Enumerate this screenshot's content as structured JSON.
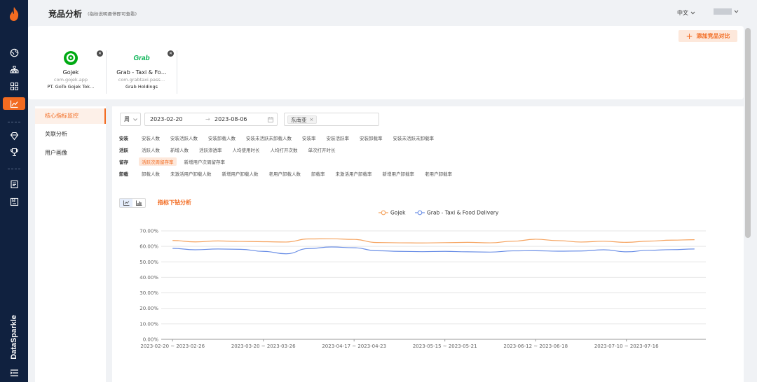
{
  "header": {
    "title": "竞品分析",
    "subtitle": "(指标说明悬停即可查看)",
    "language": "中文"
  },
  "rail": {
    "brand": "DataSparkle",
    "icons": [
      "flame-logo-icon",
      "globe-icon",
      "tree-icon",
      "grid-icon",
      "chart-icon",
      "diamond-icon",
      "trophy-icon",
      "report-icon",
      "bookmark-icon",
      "menu-icon"
    ],
    "active": "chart-icon"
  },
  "topcard": {
    "add_button": "添加竞品对比",
    "competitors": [
      {
        "name": "Gojek",
        "package": "com.gojek.app",
        "company": "PT. GoTo Gojek Tok…",
        "logo_text": "",
        "logo_color": "#00aa13"
      },
      {
        "name": "Grab - Taxi & Fo…",
        "package": "com.grabtaxi.pass…",
        "company": "Grab Holdings",
        "logo_text": "Grab",
        "logo_color": "#00b14f"
      }
    ]
  },
  "sidemenu": {
    "items": [
      "核心指标监控",
      "关联分析",
      "用户画像"
    ],
    "active_index": 0
  },
  "filters": {
    "period": "周",
    "start_date": "2023-02-20",
    "arrow": "→",
    "end_date": "2023-08-06",
    "region": "东南亚"
  },
  "metrics": {
    "groups": [
      {
        "label": "安装",
        "items": [
          "安装人数",
          "安装活跃人数",
          "安装卸载人数",
          "安装未活跃未卸载人数",
          "安装率",
          "安装活跃率",
          "安装卸载率",
          "安装未活跃未卸载率"
        ]
      },
      {
        "label": "活跃",
        "items": [
          "活跃人数",
          "新增人数",
          "活跃渗透率",
          "人均使用时长",
          "人均打开次数",
          "单次打开时长"
        ]
      },
      {
        "label": "留存",
        "items": [
          "活跃次周留存率",
          "新增用户次周留存率"
        ]
      },
      {
        "label": "卸载",
        "items": [
          "卸载人数",
          "未激活用户卸载人数",
          "新增用户卸载人数",
          "老用户卸载人数",
          "卸载率",
          "未激活用户卸载率",
          "新增用户卸载率",
          "老用户卸载率"
        ]
      }
    ],
    "selected": "活跃次周留存率"
  },
  "drill_label": "指标下钻分析",
  "colors": {
    "accent": "#f26b21",
    "gojek": "#f5a25d",
    "grab": "#6b8fe6"
  },
  "chart_data": {
    "type": "line",
    "title": "",
    "xlabel": "",
    "ylabel": "",
    "legend_position": "top-center",
    "grid": true,
    "ylim": [
      0,
      70
    ],
    "yticks": [
      "0.00%",
      "10.00%",
      "20.00%",
      "30.00%",
      "40.00%",
      "50.00%",
      "60.00%",
      "70.00%"
    ],
    "x": [
      "2023-02-20 ~ 2023-02-26",
      "2023-02-27 ~ 2023-03-05",
      "2023-03-06 ~ 2023-03-12",
      "2023-03-13 ~ 2023-03-19",
      "2023-03-20 ~ 2023-03-26",
      "2023-03-27 ~ 2023-04-02",
      "2023-04-03 ~ 2023-04-09",
      "2023-04-10 ~ 2023-04-16",
      "2023-04-17 ~ 2023-04-23",
      "2023-04-24 ~ 2023-04-30",
      "2023-05-01 ~ 2023-05-07",
      "2023-05-08 ~ 2023-05-14",
      "2023-05-15 ~ 2023-05-21",
      "2023-05-22 ~ 2023-05-28",
      "2023-05-29 ~ 2023-06-04",
      "2023-06-05 ~ 2023-06-11",
      "2023-06-12 ~ 2023-06-18",
      "2023-06-19 ~ 2023-06-25",
      "2023-06-26 ~ 2023-07-02",
      "2023-07-03 ~ 2023-07-09",
      "2023-07-10 ~ 2023-07-16",
      "2023-07-17 ~ 2023-07-23",
      "2023-07-24 ~ 2023-07-30",
      "2023-07-31 ~ 2023-08-06"
    ],
    "xtick_labels": [
      "2023-02-20 ~ 2023-02-26",
      "2023-03-20 ~ 2023-03-26",
      "2023-04-17 ~ 2023-04-23",
      "2023-05-15 ~ 2023-05-21",
      "2023-06-12 ~ 2023-06-18",
      "2023-07-10 ~ 2023-07-16"
    ],
    "series": [
      {
        "name": "Gojek",
        "values": [
          63.8,
          62.9,
          63.5,
          63.2,
          63.0,
          62.8,
          64.8,
          64.9,
          64.5,
          62.5,
          62.3,
          62.2,
          62.4,
          62.6,
          62.3,
          63.3,
          64.6,
          63.7,
          62.8,
          63.3,
          62.6,
          63.4,
          64.0,
          64.3
        ]
      },
      {
        "name": "Grab - Taxi & Food Delivery",
        "values": [
          58.7,
          57.8,
          58.3,
          58.1,
          56.8,
          55.2,
          58.6,
          59.6,
          59.1,
          57.2,
          56.8,
          56.6,
          56.8,
          56.5,
          56.3,
          57.1,
          57.2,
          56.9,
          57.0,
          57.8,
          56.5,
          57.5,
          57.9,
          58.3
        ]
      }
    ]
  }
}
